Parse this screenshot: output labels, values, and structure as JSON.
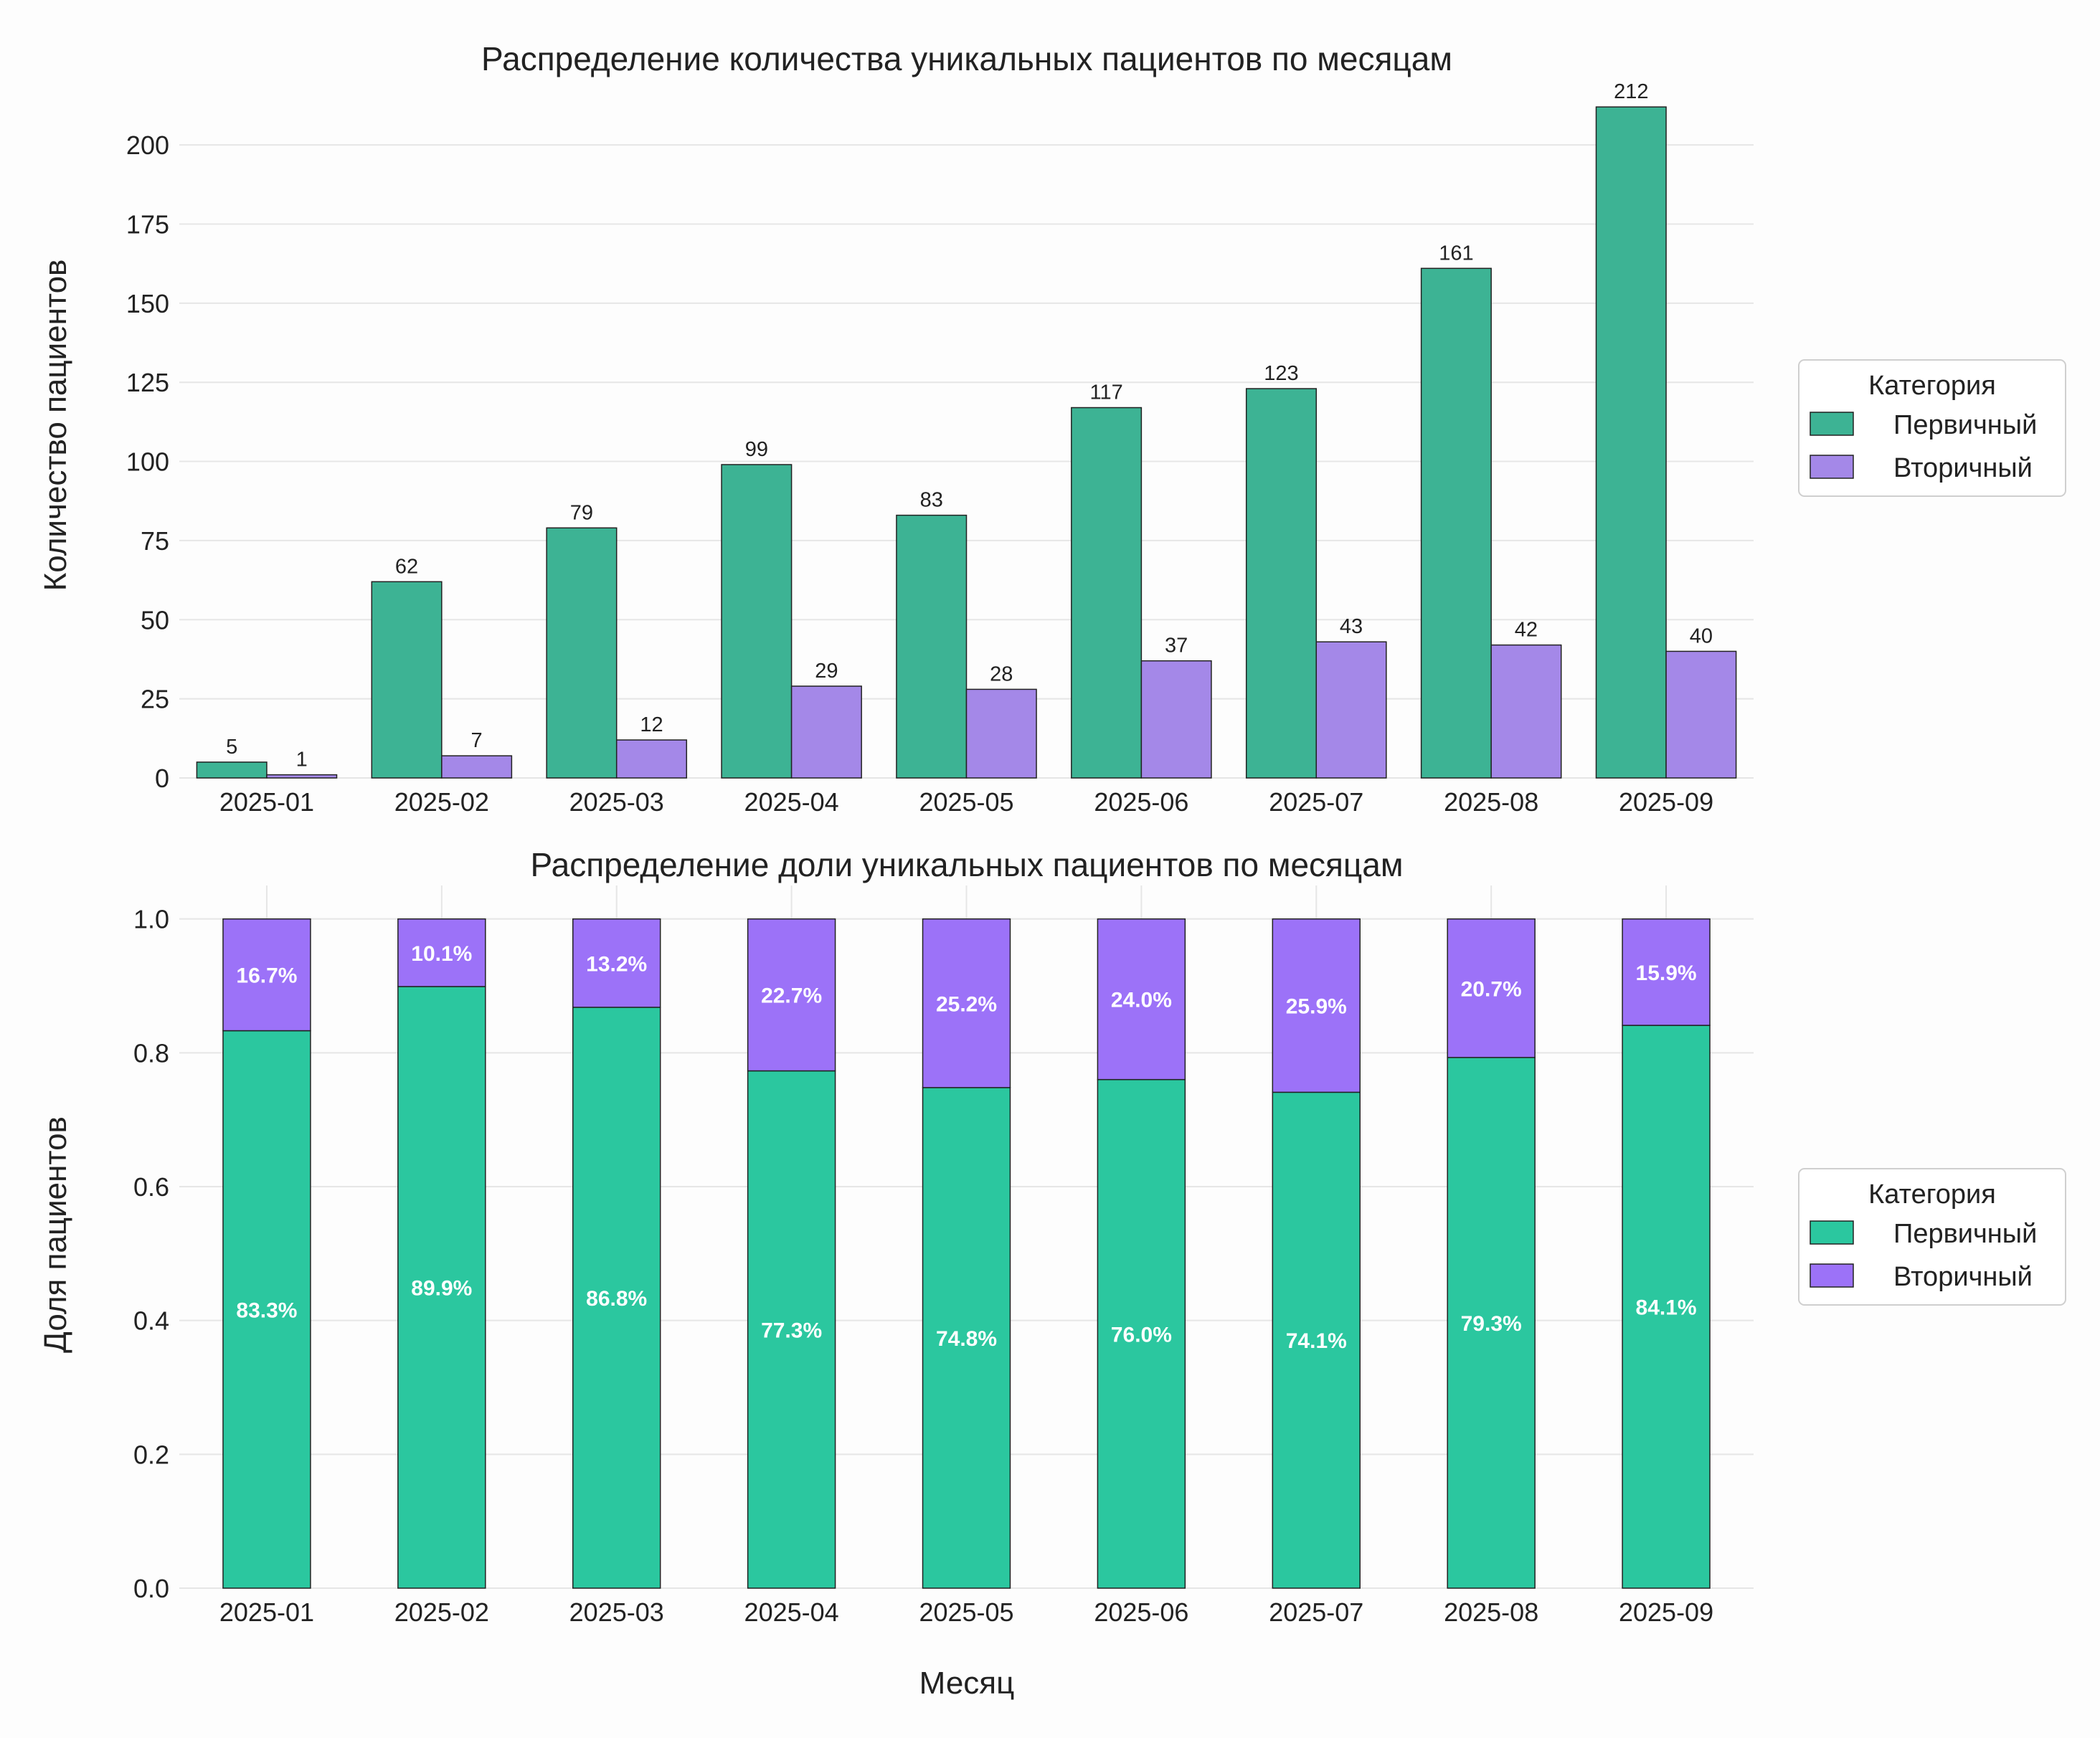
{
  "chart_data": [
    {
      "type": "bar",
      "title": "Распределение количества уникальных пациентов по месяцам",
      "xlabel": "",
      "ylabel": "Количество пациентов",
      "categories": [
        "2025-01",
        "2025-02",
        "2025-03",
        "2025-04",
        "2025-05",
        "2025-06",
        "2025-07",
        "2025-08",
        "2025-09"
      ],
      "series": [
        {
          "name": "Первичный",
          "values": [
            5,
            62,
            79,
            99,
            83,
            117,
            123,
            161,
            212
          ],
          "color": "#3db394"
        },
        {
          "name": "Вторичный",
          "values": [
            1,
            7,
            12,
            29,
            28,
            37,
            43,
            42,
            40
          ],
          "color": "#a488e8"
        }
      ],
      "yticks": [
        0,
        25,
        50,
        75,
        100,
        125,
        150,
        175,
        200
      ],
      "yticklabels": [
        "0",
        "25",
        "50",
        "75",
        "100",
        "125",
        "150",
        "175",
        "200"
      ],
      "ylim": [
        0,
        222
      ],
      "grid": "horizontal",
      "legend": {
        "title": "Категория",
        "position": "right"
      }
    },
    {
      "type": "bar",
      "stacked": true,
      "title": "Распределение доли уникальных пациентов по месяцам",
      "xlabel": "Месяц",
      "ylabel": "Доля пациентов",
      "categories": [
        "2025-01",
        "2025-02",
        "2025-03",
        "2025-04",
        "2025-05",
        "2025-06",
        "2025-07",
        "2025-08",
        "2025-09"
      ],
      "series": [
        {
          "name": "Первичный",
          "values": [
            0.833,
            0.899,
            0.868,
            0.773,
            0.748,
            0.76,
            0.741,
            0.793,
            0.841
          ],
          "labels": [
            "83.3%",
            "89.9%",
            "86.8%",
            "77.3%",
            "74.8%",
            "76.0%",
            "74.1%",
            "79.3%",
            "84.1%"
          ],
          "color": "#2bc79f"
        },
        {
          "name": "Вторичный",
          "values": [
            0.167,
            0.101,
            0.132,
            0.227,
            0.252,
            0.24,
            0.259,
            0.207,
            0.159
          ],
          "labels": [
            "16.7%",
            "10.1%",
            "13.2%",
            "22.7%",
            "25.2%",
            "24.0%",
            "25.9%",
            "20.7%",
            "15.9%"
          ],
          "color": "#9c72f8"
        }
      ],
      "yticks": [
        0.0,
        0.2,
        0.4,
        0.6,
        0.8,
        1.0
      ],
      "yticklabels": [
        "0.0",
        "0.2",
        "0.4",
        "0.6",
        "0.8",
        "1.0"
      ],
      "ylim": [
        0,
        1.05
      ],
      "grid": "both",
      "legend": {
        "title": "Категория",
        "position": "right"
      }
    }
  ]
}
